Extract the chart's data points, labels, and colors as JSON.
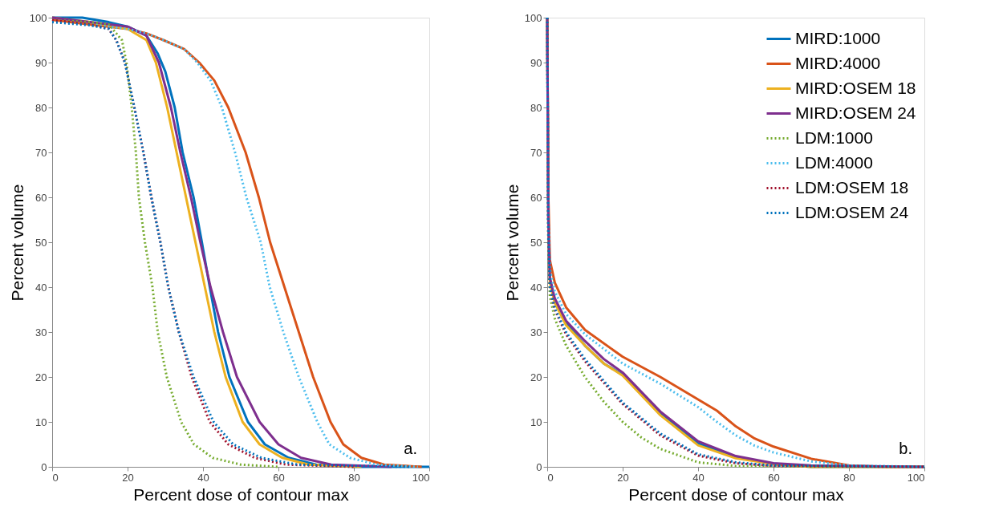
{
  "chart_data": [
    {
      "type": "line",
      "xlabel": "Percent dose of contour max",
      "ylabel": "Percent volume",
      "xlim": [
        0,
        100
      ],
      "xticks": [
        0,
        20,
        40,
        60,
        80,
        100
      ],
      "ylim": [
        0,
        100
      ],
      "yticks": [
        0,
        10,
        20,
        30,
        40,
        50,
        60,
        70,
        80,
        90,
        100
      ],
      "grid": false,
      "legend": false,
      "marker": "none",
      "annotations": [
        "a."
      ],
      "series": [
        {
          "color": "#0072bd",
          "line_style": "solid",
          "x": [
            0,
            8,
            15,
            20,
            25,
            28,
            30,
            32.5,
            34.6,
            37.5,
            39.7,
            41.8,
            44,
            47,
            51.9,
            56.4,
            62.7,
            70,
            80,
            100
          ],
          "values": [
            100,
            100,
            99,
            98,
            96,
            92,
            88,
            80,
            70,
            60,
            50,
            40,
            30,
            20,
            10,
            5,
            2,
            0.5,
            0,
            0
          ]
        },
        {
          "color": "#d95319",
          "line_style": "solid",
          "x": [
            0,
            10,
            20,
            25,
            29.5,
            35,
            39,
            43,
            46.7,
            51.3,
            54.8,
            57.8,
            61.6,
            65.4,
            69.2,
            73.8,
            77.2,
            82,
            88,
            98
          ],
          "values": [
            99.5,
            98.5,
            97.5,
            96.5,
            95,
            93,
            90,
            86,
            80,
            70,
            60,
            50,
            40,
            30,
            20,
            10,
            5,
            2,
            0.5,
            0
          ]
        },
        {
          "color": "#edb120",
          "line_style": "solid",
          "x": [
            0,
            10,
            20,
            25,
            27.5,
            30.5,
            33,
            35.5,
            38,
            40.5,
            43,
            46,
            50.5,
            55,
            61,
            68,
            82
          ],
          "values": [
            100,
            99,
            97.5,
            95,
            90,
            80,
            70,
            60,
            50,
            40,
            30,
            20,
            10,
            5,
            2,
            0.5,
            0
          ]
        },
        {
          "color": "#7e2f8e",
          "line_style": "solid",
          "x": [
            0,
            10,
            20,
            25,
            28.3,
            31.5,
            34,
            36.8,
            39.3,
            42,
            45.3,
            49,
            55,
            60,
            66,
            74,
            90
          ],
          "values": [
            100,
            99,
            98,
            96,
            90,
            80,
            70,
            60,
            50,
            40,
            30,
            20,
            10,
            5,
            2,
            0.5,
            0
          ]
        },
        {
          "color": "#77ac30",
          "line_style": "dotted",
          "x": [
            0,
            10,
            15,
            18.5,
            19.7,
            21.1,
            22.2,
            23,
            24.6,
            26.6,
            28,
            30.4,
            34.2,
            37.6,
            42.6,
            50,
            60
          ],
          "values": [
            99.5,
            99,
            98.5,
            95,
            90,
            80,
            70,
            60,
            50,
            40,
            30,
            20,
            10,
            5,
            2,
            0.5,
            0
          ]
        },
        {
          "color": "#4dbeee",
          "line_style": "dotted",
          "x": [
            0,
            10,
            20,
            25,
            29.5,
            35,
            38.5,
            42,
            45,
            48.5,
            51.5,
            55.3,
            57.7,
            61.3,
            65.4,
            70.3,
            73.5,
            79,
            86,
            97
          ],
          "values": [
            99.5,
            98.5,
            97.5,
            96.5,
            95,
            93,
            90,
            86,
            80,
            70,
            60,
            50,
            40,
            30,
            20,
            10,
            5,
            2,
            0.5,
            0
          ]
        },
        {
          "color": "#a2142f",
          "line_style": "dotted",
          "x": [
            0,
            10,
            15,
            17,
            19.3,
            21.8,
            24.2,
            26.3,
            28.7,
            30.8,
            33.6,
            37,
            41.8,
            46.7,
            53.7,
            62,
            80
          ],
          "values": [
            99.5,
            98.5,
            97.5,
            95,
            90,
            80,
            70,
            60,
            50,
            40,
            30,
            20,
            10,
            5,
            2,
            0.5,
            0
          ]
        },
        {
          "color": "#0072bd",
          "line_style": "dotted",
          "x": [
            0,
            10,
            15,
            17,
            19.3,
            21.8,
            24.2,
            26.3,
            28.7,
            30.8,
            33.6,
            37.5,
            42.8,
            48,
            55.5,
            65,
            95
          ],
          "values": [
            99,
            98.3,
            97.5,
            95,
            90,
            80,
            70,
            60,
            50,
            40,
            30,
            20,
            10,
            5,
            2,
            0.5,
            0
          ]
        }
      ]
    },
    {
      "type": "line",
      "xlabel": "Percent dose of contour max",
      "ylabel": "Percent volume",
      "xlim": [
        0,
        100
      ],
      "xticks": [
        0,
        20,
        40,
        60,
        80,
        100
      ],
      "ylim": [
        0,
        100
      ],
      "yticks": [
        0,
        10,
        20,
        30,
        40,
        50,
        60,
        70,
        80,
        90,
        100
      ],
      "grid": false,
      "legend": "top right",
      "marker": "none",
      "annotations": [
        "b."
      ],
      "series": [
        {
          "name": "MIRD:1000",
          "color": "#0072bd",
          "line_style": "solid",
          "x": [
            0,
            0.3,
            0.7,
            2,
            5,
            10,
            15,
            20,
            30,
            40,
            50,
            60,
            70,
            100
          ],
          "values": [
            100,
            55,
            42,
            37,
            32,
            27,
            23,
            20.5,
            12,
            5.2,
            2.2,
            0.7,
            0,
            0
          ]
        },
        {
          "name": "MIRD:4000",
          "color": "#d95319",
          "line_style": "solid",
          "x": [
            0,
            0.3,
            0.7,
            2,
            5,
            10,
            20,
            30,
            40,
            45,
            50,
            55,
            60,
            70,
            80,
            90,
            100
          ],
          "values": [
            100,
            60,
            46,
            41,
            35.5,
            30.5,
            24.5,
            20,
            15,
            12.5,
            9,
            6.3,
            4.5,
            1.8,
            0.3,
            0,
            0
          ]
        },
        {
          "name": "MIRD:OSEM 18",
          "color": "#edb120",
          "line_style": "solid",
          "x": [
            0,
            0.3,
            0.7,
            2,
            5,
            10,
            15,
            20,
            30,
            40,
            50,
            60,
            70,
            100
          ],
          "values": [
            100,
            54,
            41,
            36.5,
            31.5,
            27,
            23,
            20.3,
            11.5,
            4.8,
            1.9,
            0.6,
            0,
            0
          ]
        },
        {
          "name": "MIRD:OSEM 24",
          "color": "#7e2f8e",
          "line_style": "solid",
          "x": [
            0,
            0.3,
            0.7,
            2,
            5,
            10,
            15,
            20,
            30,
            40,
            50,
            60,
            70,
            100
          ],
          "values": [
            100,
            55,
            42,
            37.5,
            32.5,
            28,
            24,
            21,
            12.3,
            5.7,
            2.4,
            0.8,
            0.3,
            0
          ]
        },
        {
          "name": "LDM:1000",
          "color": "#77ac30",
          "line_style": "dotted",
          "x": [
            0,
            0.3,
            0.7,
            2,
            5,
            10,
            15,
            20,
            25,
            30,
            40,
            50,
            100
          ],
          "values": [
            100,
            50,
            38,
            33,
            27,
            20,
            14.5,
            10,
            6.5,
            4,
            1,
            0.2,
            0
          ]
        },
        {
          "name": "LDM:4000",
          "color": "#4dbeee",
          "line_style": "dotted",
          "x": [
            0,
            0.3,
            0.7,
            2,
            5,
            10,
            20,
            30,
            40,
            45,
            50,
            55,
            60,
            70,
            80,
            100
          ],
          "values": [
            100,
            55,
            44,
            39,
            34,
            29.5,
            23,
            18.5,
            13.3,
            10,
            7,
            4.7,
            3.2,
            1.2,
            0.3,
            0
          ]
        },
        {
          "name": "LDM:OSEM 18",
          "color": "#a2142f",
          "line_style": "dotted",
          "x": [
            0,
            0.3,
            0.7,
            2,
            5,
            10,
            20,
            30,
            40,
            50,
            60,
            100
          ],
          "values": [
            100,
            52,
            40,
            35,
            29.5,
            23.5,
            14,
            7,
            2.5,
            0.8,
            0.2,
            0
          ]
        },
        {
          "name": "LDM:OSEM 24",
          "color": "#0072bd",
          "line_style": "dotted",
          "x": [
            0,
            0.3,
            0.7,
            2,
            5,
            10,
            20,
            30,
            40,
            50,
            60,
            100
          ],
          "values": [
            100,
            52,
            40,
            35.3,
            30,
            24,
            14.3,
            7.4,
            2.8,
            1,
            0.3,
            0
          ]
        }
      ]
    }
  ]
}
